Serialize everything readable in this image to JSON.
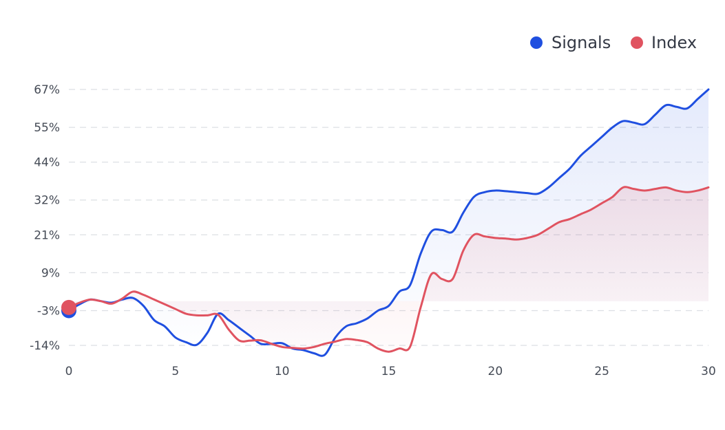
{
  "chart_data": {
    "type": "line",
    "title": "",
    "xlabel": "",
    "ylabel": "",
    "xlim": [
      0,
      30
    ],
    "ylim": [
      -14,
      67
    ],
    "x_ticks": [
      0,
      5,
      10,
      15,
      20,
      25,
      30
    ],
    "y_ticks": [
      -14,
      -3,
      9,
      21,
      32,
      44,
      55,
      67
    ],
    "y_tick_labels": [
      "-14%",
      "-3%",
      "9%",
      "21%",
      "32%",
      "44%",
      "55%",
      "67%"
    ],
    "grid": true,
    "legend_position": "top-right",
    "series": [
      {
        "name": "Signals",
        "color": "#1f4fe0",
        "fill": "area",
        "x": [
          0,
          0.5,
          1,
          1.5,
          2,
          2.5,
          3,
          3.5,
          4,
          4.5,
          5,
          5.5,
          6,
          6.5,
          7,
          7.5,
          8,
          8.5,
          9,
          9.5,
          10,
          10.5,
          11,
          11.5,
          12,
          12.5,
          13,
          13.5,
          14,
          14.5,
          15,
          15.5,
          16,
          16.5,
          17,
          17.5,
          18,
          18.5,
          19,
          19.5,
          20,
          20.5,
          21,
          21.5,
          22,
          22.5,
          23,
          23.5,
          24,
          24.5,
          25,
          25.5,
          26,
          26.5,
          27,
          27.5,
          28,
          28.5,
          29,
          29.5,
          30
        ],
        "values": [
          -3.0,
          -1.0,
          0.5,
          0.0,
          -0.5,
          0.5,
          1.0,
          -1.5,
          -6.0,
          -8.0,
          -11.5,
          -13.0,
          -13.8,
          -10.0,
          -4.0,
          -6.0,
          -8.5,
          -11.0,
          -13.5,
          -13.5,
          -13.3,
          -15.0,
          -15.5,
          -16.5,
          -17.0,
          -11.5,
          -8.0,
          -7.0,
          -5.5,
          -3.0,
          -1.5,
          3.0,
          5.0,
          15.0,
          22.0,
          22.5,
          22.0,
          28.0,
          33.0,
          34.5,
          35.0,
          34.8,
          34.5,
          34.2,
          34.0,
          36.0,
          39.0,
          42.0,
          46.0,
          49.0,
          52.0,
          55.0,
          57.0,
          56.5,
          56.0,
          59.0,
          62.0,
          61.5,
          61.0,
          64.0,
          67.0
        ]
      },
      {
        "name": "Index",
        "color": "#e05360",
        "fill": "area",
        "x": [
          0,
          0.5,
          1,
          1.5,
          2,
          2.5,
          3,
          3.5,
          4,
          4.5,
          5,
          5.5,
          6,
          6.5,
          7,
          7.5,
          8,
          8.5,
          9,
          9.5,
          10,
          10.5,
          11,
          11.5,
          12,
          12.5,
          13,
          13.5,
          14,
          14.5,
          15,
          15.5,
          16,
          16.5,
          17,
          17.5,
          18,
          18.5,
          19,
          19.5,
          20,
          20.5,
          21,
          21.5,
          22,
          22.5,
          23,
          23.5,
          24,
          24.5,
          25,
          25.5,
          26,
          26.5,
          27,
          27.5,
          28,
          28.5,
          29,
          29.5,
          30
        ],
        "values": [
          -2.0,
          -0.5,
          0.5,
          0.0,
          -0.8,
          0.8,
          3.0,
          2.0,
          0.5,
          -1.0,
          -2.5,
          -4.0,
          -4.5,
          -4.5,
          -4.3,
          -9.0,
          -12.5,
          -12.5,
          -12.4,
          -13.5,
          -14.5,
          -14.8,
          -15.0,
          -14.5,
          -13.5,
          -12.8,
          -12.0,
          -12.3,
          -13.0,
          -15.0,
          -16.0,
          -15.0,
          -14.5,
          -2.0,
          8.5,
          7.0,
          7.0,
          16.0,
          21.0,
          20.5,
          20.0,
          19.8,
          19.5,
          20.0,
          21.0,
          23.0,
          25.0,
          26.0,
          27.5,
          29.0,
          31.0,
          33.0,
          36.0,
          35.5,
          35.0,
          35.5,
          36.0,
          35.0,
          34.5,
          35.0,
          36.0
        ]
      }
    ]
  },
  "legend": {
    "items": [
      {
        "label": "Signals",
        "color": "#1f4fe0"
      },
      {
        "label": "Index",
        "color": "#e05360"
      }
    ]
  }
}
